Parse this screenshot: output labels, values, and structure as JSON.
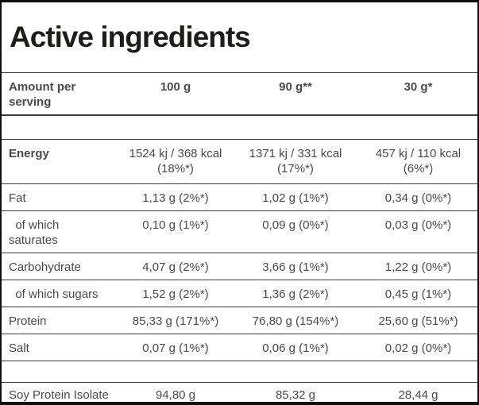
{
  "title": "Active ingredients",
  "colors": {
    "border_outer": "#0f0f0f",
    "border_inner": "#3c3c3c",
    "text": "#4a4a4a",
    "title": "#1d1d1b",
    "background": "#ffffff"
  },
  "table": {
    "header": {
      "label": "Amount per\nserving",
      "columns": [
        "100 g",
        "90 g**",
        "30 g*"
      ]
    },
    "rows": [
      {
        "label": "Energy",
        "values": [
          "1524 kj / 368 kcal\n(18%*)",
          "1371 kj / 331 kcal\n(17%*)",
          "457 kj / 110 kcal\n(6%*)"
        ]
      },
      {
        "label": "Fat",
        "values": [
          "1,13 g (2%*)",
          "1,02 g (1%*)",
          "0,34 g (0%*)"
        ]
      },
      {
        "label": "  of which\nsaturates",
        "values": [
          "0,10 g (1%*)",
          "0,09 g (0%*)",
          "0,03 g (0%*)"
        ]
      },
      {
        "label": "Carbohydrate",
        "values": [
          "4,07 g (2%*)",
          "3,66 g (1%*)",
          "1,22 g (0%*)"
        ]
      },
      {
        "label": "  of which sugars",
        "values": [
          "1,52 g (2%*)",
          "1,36 g (2%*)",
          "0,45 g (1%*)"
        ]
      },
      {
        "label": "Protein",
        "values": [
          "85,33 g (171%*)",
          "76,80 g (154%*)",
          "25,60 g (51%*)"
        ]
      },
      {
        "label": "Salt",
        "values": [
          "0,07 g (1%*)",
          "0,06 g (1%*)",
          "0,02 g (0%*)"
        ]
      },
      {
        "label": "Soy Protein Isolate",
        "values": [
          "94,80 g",
          "85,32 g",
          "28,44 g"
        ]
      }
    ]
  }
}
